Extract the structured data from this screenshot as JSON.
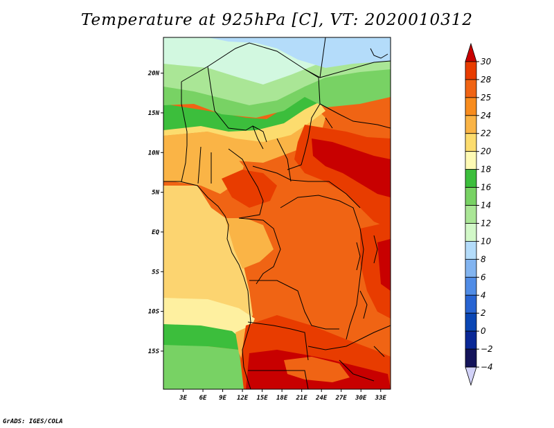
{
  "title": "Temperature at 925hPa [C], VT: 2020010312",
  "footer": "GrADS: IGES/COLA",
  "map": {
    "lat_labels": [
      {
        "text": "20N",
        "lat": 20
      },
      {
        "text": "15N",
        "lat": 15
      },
      {
        "text": "10N",
        "lat": 10
      },
      {
        "text": "5N",
        "lat": 5
      },
      {
        "text": "EQ",
        "lat": 0
      },
      {
        "text": "5S",
        "lat": -5
      },
      {
        "text": "10S",
        "lat": -10
      },
      {
        "text": "15S",
        "lat": -15
      }
    ],
    "lon_labels": [
      {
        "text": "3E",
        "lon": 3
      },
      {
        "text": "6E",
        "lon": 6
      },
      {
        "text": "9E",
        "lon": 9
      },
      {
        "text": "12E",
        "lon": 12
      },
      {
        "text": "15E",
        "lon": 15
      },
      {
        "text": "18E",
        "lon": 18
      },
      {
        "text": "21E",
        "lon": 21
      },
      {
        "text": "24E",
        "lon": 24
      },
      {
        "text": "27E",
        "lon": 27
      },
      {
        "text": "30E",
        "lon": 30
      },
      {
        "text": "33E",
        "lon": 33
      }
    ],
    "lon_range": [
      0,
      34.5
    ],
    "lat_range": [
      -19.8,
      24.5
    ]
  },
  "colorbar": {
    "levels": [
      "30",
      "28",
      "25",
      "24",
      "22",
      "20",
      "18",
      "16",
      "14",
      "12",
      "10",
      "8",
      "6",
      "4",
      "2",
      "0",
      "−2",
      "−4"
    ],
    "colors": [
      "#c80000",
      "#e83c00",
      "#f06414",
      "#f88c1e",
      "#fab446",
      "#fcdc6e",
      "#fefab4",
      "#3cbe3c",
      "#78d264",
      "#aae696",
      "#d2f8c8",
      "#b4dcfa",
      "#82b4f0",
      "#508ce6",
      "#2864d2",
      "#0a46b4",
      "#0a2896",
      "#14145a",
      "#d2d2f8"
    ]
  }
}
